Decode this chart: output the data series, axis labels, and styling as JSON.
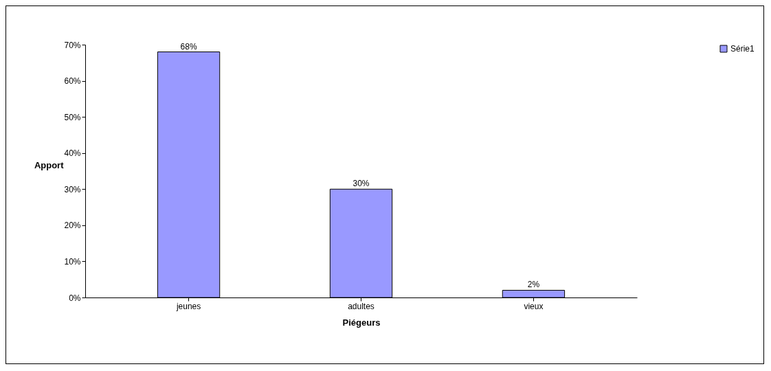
{
  "chart_data": {
    "type": "bar",
    "xlabel": "Piégeurs",
    "ylabel": "Apport",
    "categories": [
      "jeunes",
      "adultes",
      "vieux"
    ],
    "series": [
      {
        "name": "Série1",
        "color": "#9999ff",
        "values": [
          68,
          30,
          2
        ],
        "value_labels": [
          "68%",
          "30%",
          "2%"
        ]
      }
    ],
    "ylim": [
      0,
      70
    ],
    "yticks": [
      {
        "value": 0,
        "label": "0%"
      },
      {
        "value": 10,
        "label": "10%"
      },
      {
        "value": 20,
        "label": "20%"
      },
      {
        "value": 30,
        "label": "30%"
      },
      {
        "value": 40,
        "label": "40%"
      },
      {
        "value": 50,
        "label": "50%"
      },
      {
        "value": 60,
        "label": "60%"
      },
      {
        "value": 70,
        "label": "70%"
      }
    ],
    "grid": false,
    "legend": "right"
  }
}
